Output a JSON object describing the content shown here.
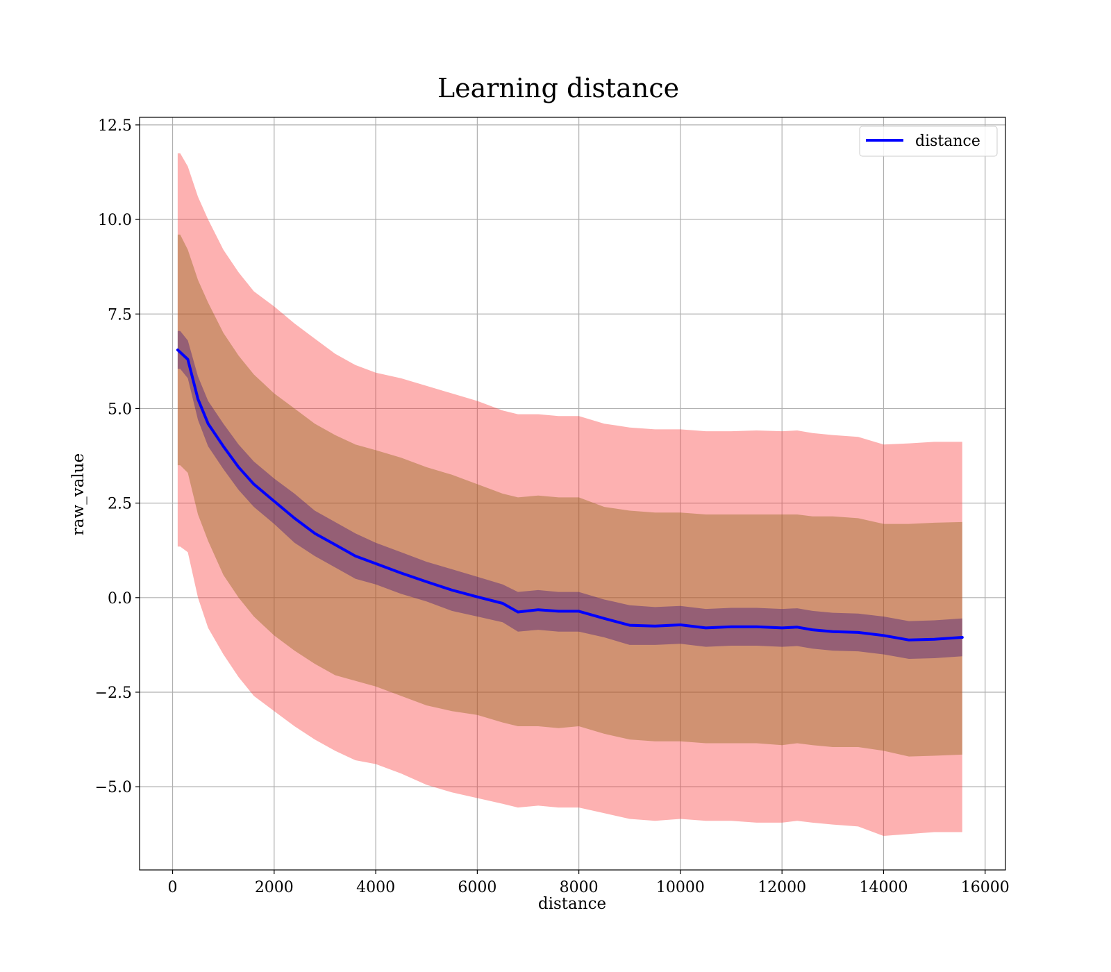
{
  "chart_data": {
    "type": "line",
    "title": "Learning distance",
    "xlabel": "distance",
    "ylabel": "raw_value",
    "xlim": [
      -650,
      16400
    ],
    "ylim": [
      -7.2,
      12.7
    ],
    "grid": true,
    "legend_position": "top-right",
    "x_ticks": [
      0,
      2000,
      4000,
      6000,
      8000,
      10000,
      12000,
      14000,
      16000
    ],
    "x_tick_labels": [
      "0",
      "2000",
      "4000",
      "6000",
      "8000",
      "10000",
      "12000",
      "14000",
      "16000"
    ],
    "y_ticks": [
      12.5,
      10.0,
      7.5,
      5.0,
      2.5,
      0.0,
      -2.5,
      -5.0
    ],
    "y_tick_labels": [
      "12.5",
      "10.0",
      "7.5",
      "5.0",
      "2.5",
      "0.0",
      "−2.5",
      "−5.0"
    ],
    "series": [
      {
        "name": "distance",
        "color": "#0000ff",
        "x": [
          100,
          300,
          500,
          700,
          1000,
          1300,
          1600,
          2000,
          2400,
          2800,
          3200,
          3600,
          4000,
          4500,
          5000,
          5500,
          6000,
          6500,
          6800,
          7200,
          7600,
          8000,
          8500,
          9000,
          9500,
          10000,
          10500,
          11000,
          11500,
          12000,
          12300,
          12600,
          13000,
          13500,
          14000,
          14500,
          15000,
          15550
        ],
        "values": [
          6.55,
          6.3,
          5.25,
          4.6,
          4.0,
          3.45,
          3.0,
          2.55,
          2.1,
          1.7,
          1.4,
          1.1,
          0.9,
          0.65,
          0.42,
          0.2,
          0.02,
          -0.15,
          -0.38,
          -0.32,
          -0.36,
          -0.36,
          -0.55,
          -0.73,
          -0.75,
          -0.72,
          -0.8,
          -0.77,
          -0.77,
          -0.8,
          -0.78,
          -0.85,
          -0.9,
          -0.92,
          -1.0,
          -1.12,
          -1.1,
          -1.05
        ]
      }
    ],
    "bands": [
      {
        "name": "outer",
        "color": "#fa3c3c",
        "opacity": 0.4,
        "x": [
          100,
          150,
          300,
          500,
          700,
          1000,
          1300,
          1600,
          2000,
          2400,
          2800,
          3200,
          3600,
          4000,
          4500,
          5000,
          5500,
          6000,
          6500,
          6800,
          7200,
          7600,
          8000,
          8500,
          9000,
          9500,
          10000,
          10500,
          11000,
          11500,
          12000,
          12300,
          12600,
          13000,
          13500,
          14000,
          14500,
          15000,
          15550
        ],
        "upper": [
          11.75,
          11.75,
          11.4,
          10.6,
          10.0,
          9.2,
          8.6,
          8.1,
          7.7,
          7.25,
          6.85,
          6.45,
          6.15,
          5.95,
          5.8,
          5.6,
          5.4,
          5.2,
          4.95,
          4.85,
          4.85,
          4.8,
          4.8,
          4.6,
          4.5,
          4.45,
          4.45,
          4.4,
          4.4,
          4.42,
          4.4,
          4.42,
          4.35,
          4.3,
          4.25,
          4.05,
          4.08,
          4.12,
          4.12
        ],
        "lower": [
          1.35,
          1.35,
          1.2,
          0.0,
          -0.8,
          -1.5,
          -2.1,
          -2.6,
          -3.0,
          -3.4,
          -3.75,
          -4.05,
          -4.3,
          -4.4,
          -4.65,
          -4.95,
          -5.15,
          -5.3,
          -5.45,
          -5.55,
          -5.5,
          -5.55,
          -5.55,
          -5.7,
          -5.85,
          -5.9,
          -5.85,
          -5.9,
          -5.9,
          -5.95,
          -5.95,
          -5.9,
          -5.95,
          -6.0,
          -6.05,
          -6.3,
          -6.25,
          -6.2,
          -6.2
        ]
      },
      {
        "name": "middle",
        "color": "#8c6414",
        "opacity": 0.4,
        "x": [
          100,
          150,
          300,
          500,
          700,
          1000,
          1300,
          1600,
          2000,
          2400,
          2800,
          3200,
          3600,
          4000,
          4500,
          5000,
          5500,
          6000,
          6500,
          6800,
          7200,
          7600,
          8000,
          8500,
          9000,
          9500,
          10000,
          10500,
          11000,
          11500,
          12000,
          12300,
          12600,
          13000,
          13500,
          14000,
          14500,
          15000,
          15550
        ],
        "upper": [
          9.6,
          9.6,
          9.2,
          8.4,
          7.8,
          7.0,
          6.4,
          5.9,
          5.4,
          5.0,
          4.6,
          4.3,
          4.05,
          3.9,
          3.7,
          3.45,
          3.25,
          3.0,
          2.75,
          2.65,
          2.7,
          2.65,
          2.65,
          2.4,
          2.3,
          2.25,
          2.25,
          2.2,
          2.2,
          2.2,
          2.2,
          2.2,
          2.15,
          2.15,
          2.1,
          1.95,
          1.95,
          1.98,
          2.0
        ],
        "lower": [
          3.5,
          3.5,
          3.3,
          2.2,
          1.5,
          0.6,
          0.0,
          -0.5,
          -1.0,
          -1.4,
          -1.75,
          -2.05,
          -2.2,
          -2.35,
          -2.6,
          -2.85,
          -3.0,
          -3.1,
          -3.3,
          -3.4,
          -3.4,
          -3.45,
          -3.4,
          -3.6,
          -3.75,
          -3.8,
          -3.8,
          -3.85,
          -3.85,
          -3.85,
          -3.9,
          -3.85,
          -3.9,
          -3.95,
          -3.95,
          -4.05,
          -4.2,
          -4.18,
          -4.15
        ]
      },
      {
        "name": "inner",
        "color": "#3c147a",
        "opacity": 0.4,
        "x": [
          100,
          150,
          300,
          500,
          700,
          1000,
          1300,
          1600,
          2000,
          2400,
          2800,
          3200,
          3600,
          4000,
          4500,
          5000,
          5500,
          6000,
          6500,
          6800,
          7200,
          7600,
          8000,
          8500,
          9000,
          9500,
          10000,
          10500,
          11000,
          11500,
          12000,
          12300,
          12600,
          13000,
          13500,
          14000,
          14500,
          15000,
          15550
        ],
        "upper": [
          7.05,
          7.05,
          6.8,
          5.85,
          5.2,
          4.6,
          4.05,
          3.6,
          3.15,
          2.75,
          2.3,
          2.0,
          1.7,
          1.45,
          1.2,
          0.95,
          0.75,
          0.55,
          0.35,
          0.15,
          0.2,
          0.15,
          0.15,
          -0.05,
          -0.2,
          -0.25,
          -0.22,
          -0.3,
          -0.27,
          -0.27,
          -0.3,
          -0.28,
          -0.35,
          -0.4,
          -0.42,
          -0.5,
          -0.62,
          -0.6,
          -0.55
        ],
        "lower": [
          6.05,
          6.05,
          5.8,
          4.7,
          4.0,
          3.4,
          2.85,
          2.4,
          1.95,
          1.45,
          1.1,
          0.8,
          0.5,
          0.35,
          0.1,
          -0.1,
          -0.35,
          -0.5,
          -0.65,
          -0.9,
          -0.85,
          -0.9,
          -0.9,
          -1.05,
          -1.25,
          -1.25,
          -1.22,
          -1.3,
          -1.27,
          -1.27,
          -1.3,
          -1.28,
          -1.35,
          -1.4,
          -1.42,
          -1.5,
          -1.62,
          -1.6,
          -1.55
        ]
      }
    ]
  }
}
